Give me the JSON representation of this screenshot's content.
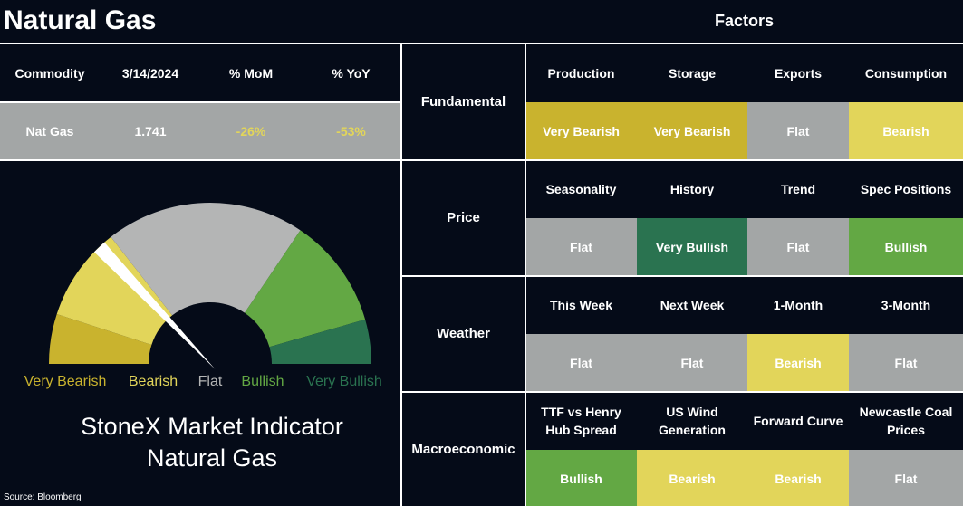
{
  "title": "Natural Gas",
  "factors_title": "Factors",
  "commodity_table": {
    "header": [
      "Commodity",
      "3/14/2024",
      "% MoM",
      "% YoY"
    ],
    "row": [
      "Nat Gas",
      "1.741",
      "-26%",
      "-53%"
    ]
  },
  "gauge": {
    "labels": [
      {
        "text": "Very Bearish",
        "color": "#c9b32e"
      },
      {
        "text": "Bearish",
        "color": "#e2d55a"
      },
      {
        "text": "Flat",
        "color": "#b4b5b5"
      },
      {
        "text": "Bullish",
        "color": "#63a844"
      },
      {
        "text": "Very Bullish",
        "color": "#2a7350"
      }
    ],
    "title_lines": [
      "StoneX Market Indicator",
      "Natural Gas"
    ]
  },
  "source": "Source: Bloomberg",
  "factor_groups": [
    {
      "name": "Fundamental",
      "factors": [
        {
          "name": "Production",
          "rating": "Very Bearish",
          "color": "#c9b32e"
        },
        {
          "name": "Storage",
          "rating": "Very Bearish",
          "color": "#c9b32e"
        },
        {
          "name": "Exports",
          "rating": "Flat",
          "color": "#a3a6a6"
        },
        {
          "name": "Consumption",
          "rating": "Bearish",
          "color": "#e2d55a"
        }
      ]
    },
    {
      "name": "Price",
      "factors": [
        {
          "name": "Seasonality",
          "rating": "Flat",
          "color": "#a3a6a6"
        },
        {
          "name": "History",
          "rating": "Very Bullish",
          "color": "#2a7350"
        },
        {
          "name": "Trend",
          "rating": "Flat",
          "color": "#a3a6a6"
        },
        {
          "name": "Spec Positions",
          "rating": "Bullish",
          "color": "#63a844"
        }
      ]
    },
    {
      "name": "Weather",
      "factors": [
        {
          "name": "This Week",
          "rating": "Flat",
          "color": "#a3a6a6"
        },
        {
          "name": "Next Week",
          "rating": "Flat",
          "color": "#a3a6a6"
        },
        {
          "name": "1-Month",
          "rating": "Bearish",
          "color": "#e2d55a"
        },
        {
          "name": "3-Month",
          "rating": "Flat",
          "color": "#a3a6a6"
        }
      ]
    },
    {
      "name": "Macroeconomic",
      "factors": [
        {
          "name": "TTF vs Henry Hub Spread",
          "rating": "Bullish",
          "color": "#63a844"
        },
        {
          "name": "US Wind Generation",
          "rating": "Bearish",
          "color": "#e2d55a"
        },
        {
          "name": "Forward Curve",
          "rating": "Bearish",
          "color": "#e2d55a"
        },
        {
          "name": "Newcastle Coal Prices",
          "rating": "Flat",
          "color": "#a3a6a6"
        }
      ]
    }
  ]
}
